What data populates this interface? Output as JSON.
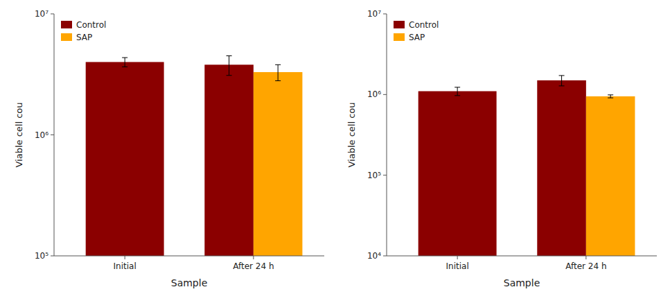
{
  "chart_data": [
    {
      "type": "bar",
      "categories": [
        "Initial",
        "After 24 h"
      ],
      "series": [
        {
          "name": "Control",
          "color": "#8B0000",
          "values": [
            4000000,
            3800000
          ],
          "errors": [
            350000,
            700000
          ]
        },
        {
          "name": "SAP",
          "color": "#FFA500",
          "values": [
            null,
            3300000
          ],
          "errors": [
            null,
            500000
          ]
        }
      ],
      "xlabel": "Sample",
      "ylabel": "Viable cell cou",
      "log": "y",
      "ylim": [
        100000,
        10000000
      ],
      "yticks": [
        {
          "value": 100000,
          "label": "10⁵"
        },
        {
          "value": 1000000,
          "label": "10⁶"
        },
        {
          "value": 10000000,
          "label": "10⁷"
        }
      ],
      "legend": "upper left"
    },
    {
      "type": "bar",
      "categories": [
        "Initial",
        "After 24 h"
      ],
      "series": [
        {
          "name": "Control",
          "color": "#8B0000",
          "values": [
            1100000,
            1500000
          ],
          "errors": [
            130000,
            220000
          ]
        },
        {
          "name": "SAP",
          "color": "#FFA500",
          "values": [
            null,
            950000
          ],
          "errors": [
            null,
            40000
          ]
        }
      ],
      "xlabel": "Sample",
      "ylabel": "Viable cell cou",
      "log": "y",
      "ylim": [
        10000,
        10000000
      ],
      "yticks": [
        {
          "value": 10000,
          "label": "10⁴"
        },
        {
          "value": 100000,
          "label": "10⁵"
        },
        {
          "value": 1000000,
          "label": "10⁶"
        },
        {
          "value": 10000000,
          "label": "10⁷"
        }
      ],
      "legend": "upper left"
    }
  ]
}
